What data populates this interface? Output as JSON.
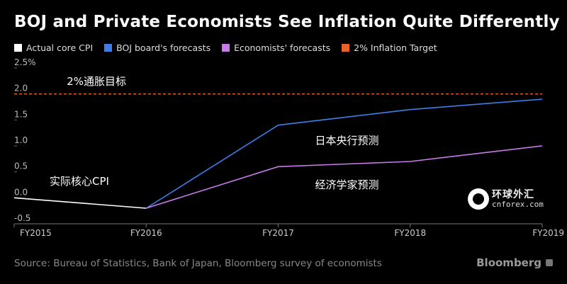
{
  "title": "BOJ and Private Economists See Inflation Quite Differently",
  "legend": [
    {
      "label": "Actual core CPI",
      "color": "#ffffff"
    },
    {
      "label": "BOJ board's forecasts",
      "color": "#3f7ee8"
    },
    {
      "label": "Economists' forecasts",
      "color": "#c77be8"
    },
    {
      "label": "2% Inflation Target",
      "color": "#e8622a"
    }
  ],
  "source": "Source: Bureau of Statistics, Bank of Japan, Bloomberg survey of economists",
  "brand": "Bloomberg",
  "watermark": {
    "cn": "环球外汇",
    "en": "cnforex.com"
  },
  "chart_data": {
    "type": "line",
    "title": "BOJ and Private Economists See Inflation Quite Differently",
    "categories": [
      "FY2015",
      "FY2016",
      "FY2017",
      "FY2018",
      "FY2019"
    ],
    "yticks": [
      "2.5%",
      "2.0",
      "1.5",
      "1.0",
      "0.5",
      "0.0",
      "-0.5"
    ],
    "ylim": [
      -0.5,
      2.5
    ],
    "grid": false,
    "legend_position": "top-left",
    "series": [
      {
        "name": "Actual core CPI",
        "color": "#ffffff",
        "points": [
          [
            "FY2015",
            0.0
          ],
          [
            "FY2016",
            -0.2
          ]
        ]
      },
      {
        "name": "BOJ board's forecasts",
        "color": "#3f7ee8",
        "points": [
          [
            "FY2016",
            -0.2
          ],
          [
            "FY2017",
            1.4
          ],
          [
            "FY2018",
            1.7
          ],
          [
            "FY2019",
            1.9
          ]
        ]
      },
      {
        "name": "Economists' forecasts",
        "color": "#c77be8",
        "points": [
          [
            "FY2016",
            -0.2
          ],
          [
            "FY2017",
            0.6
          ],
          [
            "FY2018",
            0.7
          ],
          [
            "FY2019",
            1.0
          ]
        ]
      },
      {
        "name": "2% Inflation Target",
        "color": "#e8622a",
        "dashed": true,
        "points": [
          [
            "FY2015",
            2.0
          ],
          [
            "FY2019",
            2.0
          ]
        ]
      }
    ],
    "annotations": [
      {
        "text": "2%通胀目标",
        "x": "FY2016",
        "y": 2.2
      },
      {
        "text": "日本央行预测",
        "x": "FY2017",
        "y": 1.2
      },
      {
        "text": "实际核心CPI",
        "x": "FY2015",
        "y": 0.25
      },
      {
        "text": "经济学家预测",
        "x": "FY2017",
        "y": 0.4
      }
    ]
  }
}
